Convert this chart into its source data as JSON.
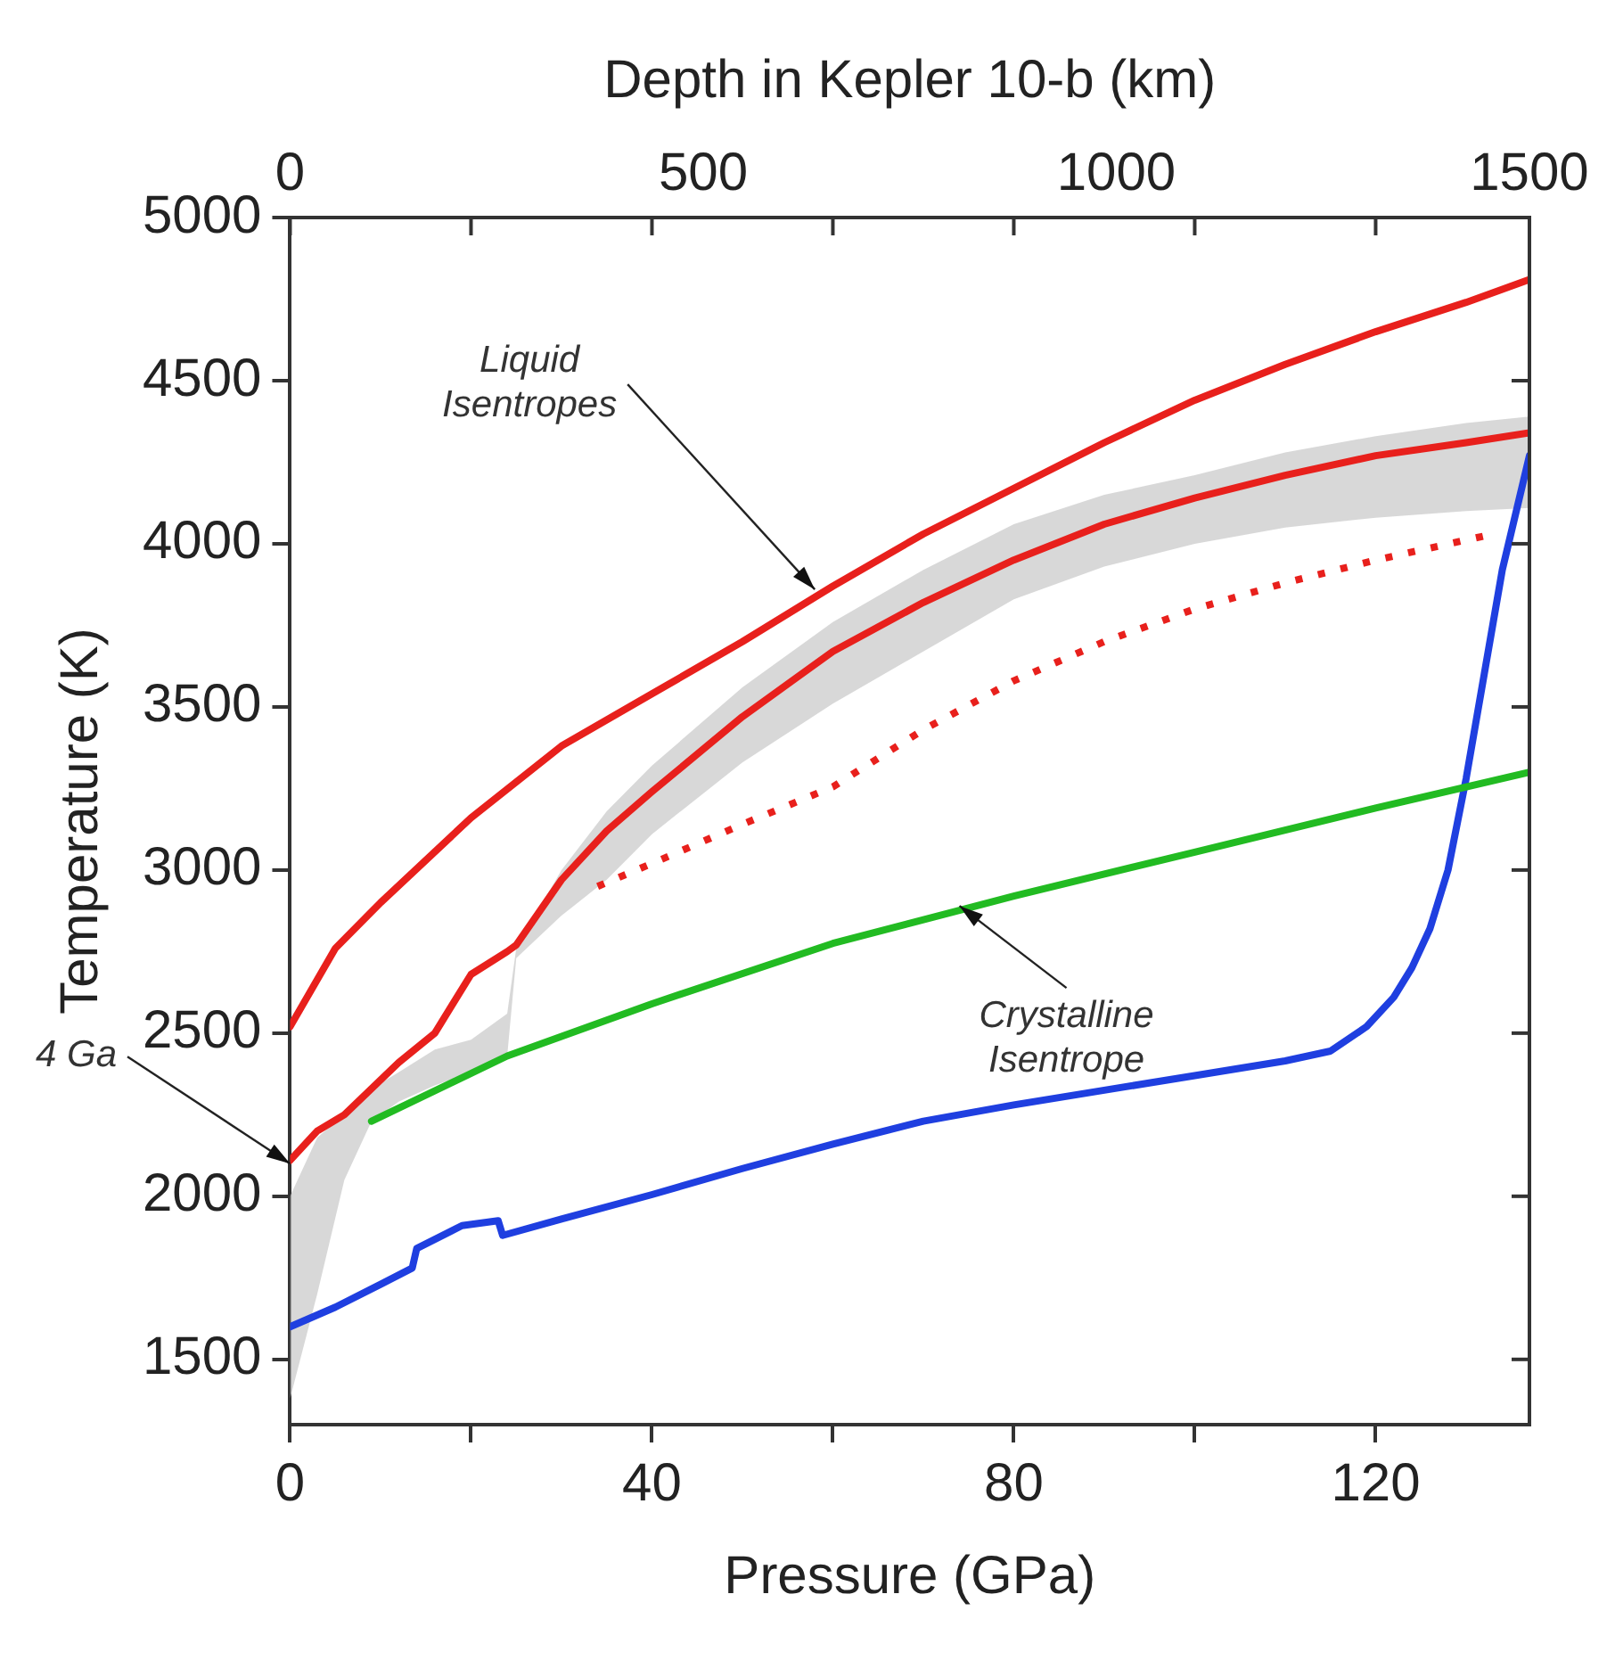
{
  "chart_data": {
    "type": "line",
    "xlabel": "Pressure (GPa)",
    "ylabel": "Temperature (K)",
    "x2label": "Depth in Kepler 10-b (km)",
    "xlim": [
      0,
      137
    ],
    "xticks": [
      0,
      {
        "value": 20,
        "label": null
      },
      40,
      {
        "value": 60,
        "label": null
      },
      80,
      {
        "value": 100,
        "label": null
      },
      120
    ],
    "x2lim": [
      0,
      1500
    ],
    "x2ticks": [
      0,
      500,
      1000,
      1500
    ],
    "ylim": [
      1300,
      5000
    ],
    "yticks": [
      1500,
      2000,
      2500,
      3000,
      3500,
      4000,
      4500,
      5000
    ],
    "grid": false,
    "legend": false,
    "marker": "none",
    "series": [
      {
        "color": "#e8201c",
        "line_style": "solid",
        "x": [
          0,
          5,
          10,
          20,
          30,
          40,
          50,
          60,
          70,
          80,
          90,
          100,
          110,
          120,
          130,
          137
        ],
        "values": [
          2520,
          2760,
          2900,
          3160,
          3380,
          3540,
          3700,
          3870,
          4030,
          4170,
          4310,
          4440,
          4550,
          4650,
          4740,
          4810
        ]
      },
      {
        "color": "#e8201c",
        "line_style": "solid",
        "x": [
          0,
          3,
          6,
          9,
          12,
          16,
          20,
          24,
          25,
          30,
          35,
          40,
          50,
          60,
          70,
          80,
          90,
          100,
          110,
          120,
          130,
          137
        ],
        "values": [
          2110,
          2200,
          2250,
          2330,
          2410,
          2500,
          2680,
          2750,
          2770,
          2970,
          3120,
          3240,
          3470,
          3670,
          3820,
          3950,
          4060,
          4140,
          4210,
          4270,
          4310,
          4340
        ],
        "upper": [
          2000,
          2180,
          2250,
          2330,
          2380,
          2450,
          2480,
          2560,
          2760,
          3000,
          3180,
          3320,
          3560,
          3760,
          3920,
          4060,
          4150,
          4210,
          4280,
          4330,
          4370,
          4390
        ],
        "lower": [
          1380,
          1700,
          2050,
          2230,
          2290,
          2340,
          2380,
          2430,
          2730,
          2860,
          2970,
          3110,
          3330,
          3510,
          3670,
          3830,
          3930,
          4000,
          4050,
          4080,
          4100,
          4110
        ]
      },
      {
        "color": "#e8201c",
        "line_style": "dotted",
        "x": [
          34,
          40,
          50,
          60,
          70,
          80,
          90,
          100,
          110,
          120,
          133
        ],
        "values": [
          2950,
          3020,
          3140,
          3255,
          3430,
          3580,
          3700,
          3800,
          3880,
          3950,
          4030
        ]
      },
      {
        "color": "#22bb22",
        "line_style": "solid",
        "x": [
          9,
          24,
          40,
          60,
          80,
          100,
          120,
          137
        ],
        "values": [
          2230,
          2430,
          2590,
          2775,
          2920,
          3055,
          3190,
          3300
        ]
      },
      {
        "color": "#1f3fe0",
        "line_style": "solid",
        "x": [
          0,
          5,
          10,
          13.5,
          14,
          19,
          23,
          23.5,
          30,
          40,
          50,
          60,
          70,
          80,
          90,
          100,
          110,
          115,
          119,
          122,
          124,
          126,
          128,
          130,
          132,
          134,
          137
        ],
        "values": [
          1600,
          1660,
          1730,
          1780,
          1840,
          1910,
          1925,
          1880,
          1930,
          2005,
          2085,
          2160,
          2230,
          2280,
          2325,
          2370,
          2415,
          2445,
          2520,
          2610,
          2700,
          2820,
          3000,
          3280,
          3600,
          3920,
          4270
        ]
      }
    ],
    "annotations": [
      {
        "text": "Liquid Isentropes",
        "x": 58,
        "y": 3860
      },
      {
        "text": "Crystalline Isentrope",
        "x": 74,
        "y": 2890
      },
      {
        "text": "4 Ga",
        "x": 0,
        "y": 2100
      }
    ]
  }
}
